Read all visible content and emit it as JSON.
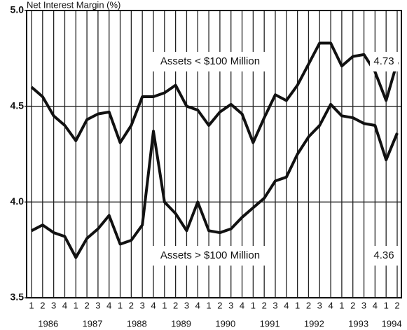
{
  "chart_data": {
    "type": "line",
    "y_label": "Net Interest Margin (%)",
    "categories": [
      "1",
      "2",
      "3",
      "4",
      "1",
      "2",
      "3",
      "4",
      "1",
      "2",
      "3",
      "4",
      "1",
      "2",
      "3",
      "4",
      "1",
      "2",
      "3",
      "4",
      "1",
      "2",
      "3",
      "4",
      "1",
      "2",
      "3",
      "4",
      "1",
      "2",
      "3",
      "4",
      "1",
      "2"
    ],
    "years": [
      "1986",
      "1987",
      "1988",
      "1989",
      "1990",
      "1991",
      "1992",
      "1993",
      "1994"
    ],
    "ylim": [
      3.5,
      5.0
    ],
    "yticks": [
      3.5,
      {
        "value": 4,
        "label": "4.0"
      },
      4.5,
      {
        "value": 5,
        "label": "5.0"
      }
    ],
    "grid": true,
    "series": [
      {
        "name": "Assets < $100 Million",
        "color": "#111111",
        "end_label": "4.73",
        "values": [
          4.6,
          4.55,
          4.45,
          4.4,
          4.32,
          4.43,
          4.46,
          4.47,
          4.31,
          4.4,
          4.55,
          4.55,
          4.57,
          4.61,
          4.5,
          4.48,
          4.4,
          4.47,
          4.51,
          4.46,
          4.31,
          4.44,
          4.56,
          4.53,
          4.61,
          4.72,
          4.83,
          4.83,
          4.71,
          4.76,
          4.77,
          4.68,
          4.53,
          4.73
        ]
      },
      {
        "name": "Assets > $100 Million",
        "color": "#111111",
        "end_label": "4.36",
        "values": [
          3.85,
          3.88,
          3.84,
          3.82,
          3.71,
          3.81,
          3.86,
          3.93,
          3.78,
          3.8,
          3.88,
          4.37,
          4.0,
          3.94,
          3.85,
          4.0,
          3.85,
          3.84,
          3.86,
          3.92,
          3.97,
          4.02,
          4.11,
          4.13,
          4.25,
          4.34,
          4.4,
          4.51,
          4.45,
          4.44,
          4.41,
          4.4,
          4.22,
          4.36
        ]
      }
    ]
  }
}
